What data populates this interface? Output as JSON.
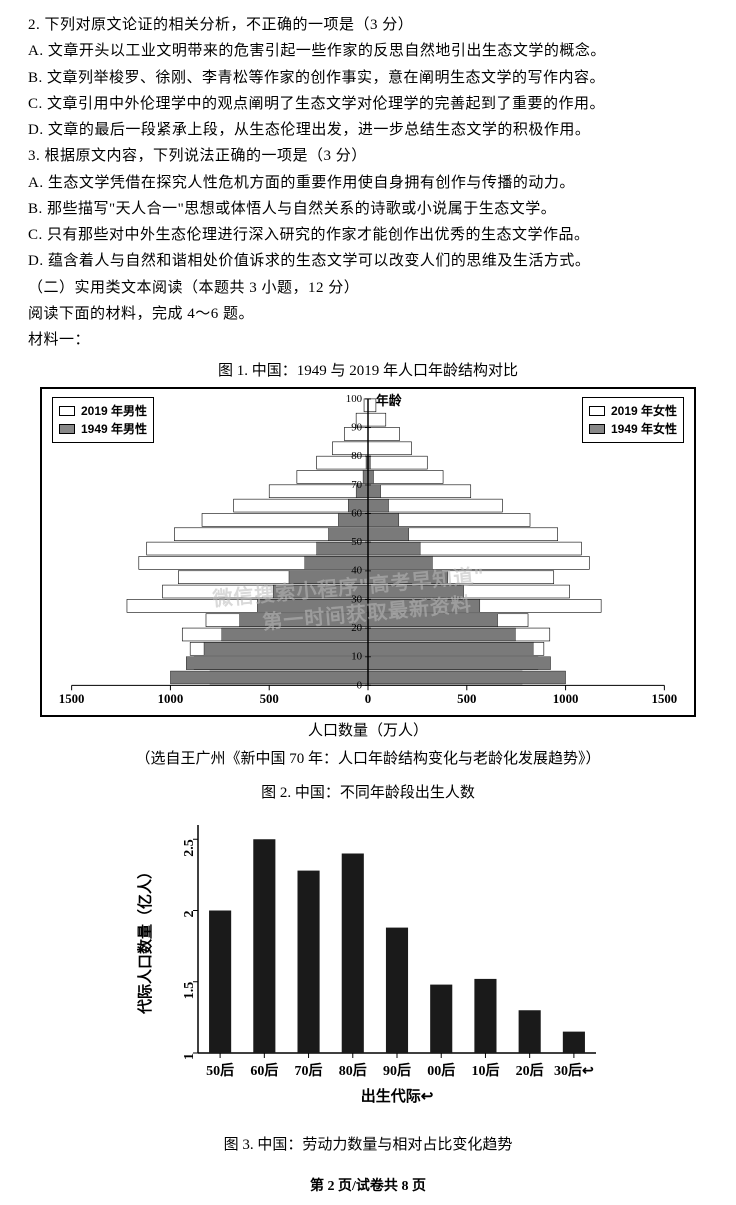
{
  "q2": {
    "stem": "2. 下列对原文论证的相关分析，不正确的一项是（3 分）",
    "A": "A. 文章开头以工业文明带来的危害引起一些作家的反思自然地引出生态文学的概念。",
    "B": "B. 文章列举梭罗、徐刚、李青松等作家的创作事实，意在阐明生态文学的写作内容。",
    "C": "C. 文章引用中外伦理学中的观点阐明了生态文学对伦理学的完善起到了重要的作用。",
    "D": "D. 文章的最后一段紧承上段，从生态伦理出发，进一步总结生态文学的积极作用。"
  },
  "q3": {
    "stem": "3. 根据原文内容，下列说法正确的一项是（3 分）",
    "A": "A. 生态文学凭借在探究人性危机方面的重要作用使自身拥有创作与传播的动力。",
    "B": "B. 那些描写\"天人合一\"思想或体悟人与自然关系的诗歌或小说属于生态文学。",
    "C": "C. 只有那些对中外生态伦理进行深入研究的作家才能创作出优秀的生态文学作品。",
    "D": "D. 蕴含着人与自然和谐相处价值诉求的生态文学可以改变人们的思维及生活方式。"
  },
  "section2_title": "（二）实用类文本阅读（本题共 3 小题，12 分）",
  "reading_instruction": "阅读下面的材料，完成 4～6 题。",
  "material_label": "材料一：",
  "fig1": {
    "title": "图 1. 中国：1949 与 2019 年人口年龄结构对比",
    "legend_left": [
      "2019 年男性",
      "1949 年男性"
    ],
    "legend_right": [
      "2019 年女性",
      "1949 年女性"
    ],
    "y_label": "年龄",
    "y_ticks": [
      100,
      90,
      80,
      70,
      60,
      50,
      40,
      30,
      20,
      10,
      0
    ],
    "x_label": "人口数量（万人）",
    "x_ticks_left": [
      1500,
      1000,
      500,
      0
    ],
    "x_ticks_right": [
      0,
      500,
      1000,
      1500
    ],
    "x_max": 1500,
    "color_2019": "#ffffff",
    "color_1949": "#7a7a7a",
    "border_color": "#000000",
    "n_age_groups": 20,
    "male_2019": [
      20,
      60,
      120,
      180,
      260,
      360,
      500,
      680,
      840,
      980,
      1120,
      1160,
      960,
      1040,
      1220,
      820,
      940,
      900,
      880,
      800
    ],
    "male_1949": [
      0,
      0,
      0,
      0,
      10,
      25,
      60,
      100,
      150,
      200,
      260,
      320,
      400,
      480,
      560,
      650,
      740,
      830,
      920,
      1000
    ],
    "female_2019": [
      40,
      90,
      160,
      220,
      300,
      380,
      520,
      680,
      820,
      960,
      1080,
      1120,
      940,
      1020,
      1180,
      810,
      920,
      890,
      860,
      780
    ],
    "female_1949": [
      0,
      0,
      0,
      0,
      12,
      28,
      64,
      104,
      156,
      206,
      264,
      326,
      404,
      484,
      566,
      656,
      746,
      836,
      924,
      1000
    ]
  },
  "citation": "（选自王广州《新中国 70 年：人口年龄结构变化与老龄化发展趋势》）",
  "fig2": {
    "title": "图 2. 中国：不同年龄段出生人数",
    "y_label": "代际人口数量（亿人）",
    "x_label": "出生代际↩",
    "y_ticks": [
      "1",
      "1.5",
      "2",
      "2.5"
    ],
    "y_min": 1.0,
    "y_max": 2.6,
    "categories": [
      "50后",
      "60后",
      "70后",
      "80后",
      "90后",
      "00后",
      "10后",
      "20后",
      "30后↩"
    ],
    "values": [
      2.0,
      2.5,
      2.28,
      2.4,
      1.88,
      1.48,
      1.52,
      1.3,
      1.15
    ],
    "bar_color": "#1a1a1a",
    "bar_width": 0.5,
    "axis_color": "#000000"
  },
  "fig3_title": "图 3. 中国：劳动力数量与相对占比变化趋势",
  "footer": {
    "page_current": "2",
    "page_total": "8",
    "prefix": "第 ",
    "middle": " 页/试卷共 ",
    "suffix": " 页"
  },
  "watermark": {
    "line1": "微信搜索小程序\"高考早知道\"",
    "line2": "第一时间获取最新资料"
  }
}
